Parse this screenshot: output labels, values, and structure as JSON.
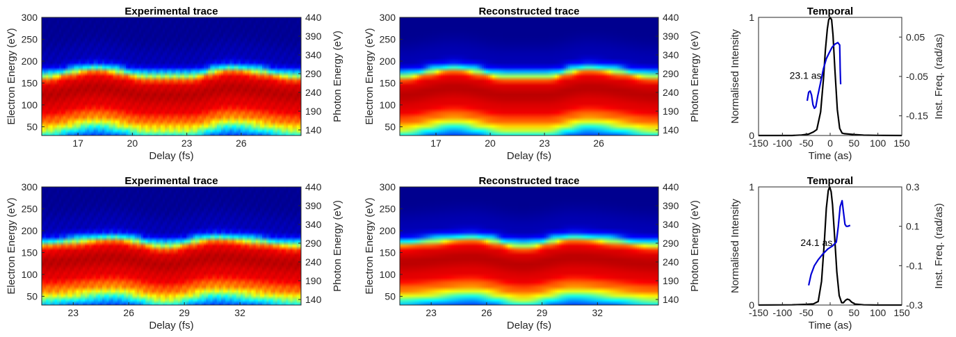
{
  "chart_data": [
    {
      "type": "heatmap",
      "title": "Experimental trace",
      "xlabel": "Delay (fs)",
      "ylabel": "Electron Energy (eV)",
      "y2label": "Photon Energy (eV)",
      "xlim": [
        15,
        29.3
      ],
      "ylim": [
        30,
        300
      ],
      "y2lim": [
        170,
        440
      ],
      "xticks": [
        17,
        20,
        23,
        26
      ],
      "yticks": [
        50,
        100,
        150,
        200,
        250,
        300
      ],
      "y2ticks": [
        140,
        190,
        240,
        290,
        340,
        390,
        440
      ],
      "colormap": "jet",
      "trace": {
        "center_x": [
          15,
          18,
          21,
          23,
          25.4,
          29.3
        ],
        "center_y": [
          123,
          140,
          123,
          123,
          140,
          123
        ]
      }
    },
    {
      "type": "heatmap",
      "title": "Reconstructed trace",
      "xlabel": "Delay (fs)",
      "ylabel": "Electron Energy (eV)",
      "y2label": "Photon Energy (eV)",
      "xlim": [
        15,
        29.3
      ],
      "ylim": [
        30,
        300
      ],
      "y2lim": [
        170,
        440
      ],
      "xticks": [
        17,
        20,
        23,
        26
      ],
      "yticks": [
        50,
        100,
        150,
        200,
        250,
        300
      ],
      "y2ticks": [
        140,
        190,
        240,
        290,
        340,
        390,
        440
      ],
      "colormap": "jet",
      "trace": {
        "center_x": [
          15,
          18,
          21,
          23,
          25.4,
          29.3
        ],
        "center_y": [
          123,
          140,
          123,
          123,
          140,
          123
        ]
      }
    },
    {
      "type": "line",
      "title": "Temporal",
      "xlabel": "Time (as)",
      "ylabel": "Normalised Intensity",
      "y2label": "Inst. Freq. (rad/as)",
      "xlim": [
        -150,
        150
      ],
      "ylim": [
        0,
        1
      ],
      "y2lim": [
        -0.2,
        0.1
      ],
      "xticks": [
        -150,
        -100,
        -50,
        0,
        50,
        100,
        150
      ],
      "yticks": [
        0,
        1
      ],
      "y2ticks": [
        -0.15,
        -0.05,
        0.05
      ],
      "annotation": {
        "text": "23.1 as",
        "x": -85,
        "y": 0.48
      },
      "series": [
        {
          "axis": "left",
          "color": "#000000",
          "x": [
            -150,
            -80,
            -60,
            -45,
            -35,
            -28,
            -20,
            -14,
            -10,
            -6,
            -3,
            0,
            3,
            6,
            10,
            15,
            20,
            25,
            30,
            40,
            50,
            70,
            100,
            150
          ],
          "y": [
            0,
            0,
            0.004,
            0.012,
            0.03,
            0.05,
            0.2,
            0.48,
            0.72,
            0.9,
            0.98,
            1.0,
            0.98,
            0.85,
            0.55,
            0.22,
            0.06,
            0.02,
            0.015,
            0.012,
            0.008,
            0.003,
            0.001,
            0
          ]
        },
        {
          "axis": "right",
          "color": "#0000d6",
          "x": [
            -48,
            -45,
            -42,
            -39,
            -36,
            -33,
            -30,
            -26,
            -20,
            -14,
            -8,
            -2,
            4,
            10,
            16,
            20,
            20.5,
            21,
            21.5,
            22
          ],
          "y": [
            -0.112,
            -0.09,
            -0.087,
            -0.097,
            -0.122,
            -0.131,
            -0.127,
            -0.1,
            -0.065,
            -0.03,
            -0.005,
            0.01,
            0.024,
            0.032,
            0.036,
            0.03,
            0.0,
            -0.03,
            -0.055,
            -0.07
          ]
        }
      ]
    },
    {
      "type": "heatmap",
      "title": "Experimental trace",
      "xlabel": "Delay (fs)",
      "ylabel": "Electron Energy (eV)",
      "y2label": "Photon Energy (eV)",
      "xlim": [
        21.3,
        35.3
      ],
      "ylim": [
        30,
        300
      ],
      "y2lim": [
        170,
        440
      ],
      "xticks": [
        23,
        26,
        29,
        32
      ],
      "yticks": [
        50,
        100,
        150,
        200,
        250,
        300
      ],
      "y2ticks": [
        140,
        190,
        240,
        290,
        340,
        390,
        440
      ],
      "colormap": "jet",
      "trace": {
        "center_x": [
          21.3,
          25.2,
          28,
          30.7,
          35.3
        ],
        "center_y": [
          128,
          140,
          123,
          140,
          125
        ]
      }
    },
    {
      "type": "heatmap",
      "title": "Reconstructed trace",
      "xlabel": "Delay (fs)",
      "ylabel": "Electron Energy (eV)",
      "y2label": "Photon Energy (eV)",
      "xlim": [
        21.3,
        35.3
      ],
      "ylim": [
        30,
        300
      ],
      "y2lim": [
        170,
        440
      ],
      "xticks": [
        23,
        26,
        29,
        32
      ],
      "yticks": [
        50,
        100,
        150,
        200,
        250,
        300
      ],
      "y2ticks": [
        140,
        190,
        240,
        290,
        340,
        390,
        440
      ],
      "colormap": "jet",
      "trace": {
        "center_x": [
          21.3,
          25.2,
          28,
          30.7,
          35.3
        ],
        "center_y": [
          128,
          140,
          123,
          140,
          125
        ]
      }
    },
    {
      "type": "line",
      "title": "Temporal",
      "xlabel": "Time (as)",
      "ylabel": "Normalised Intensity",
      "y2label": "Inst. Freq. (rad/as)",
      "xlim": [
        -150,
        150
      ],
      "ylim": [
        0,
        1
      ],
      "y2lim": [
        -0.3,
        0.3
      ],
      "xticks": [
        -150,
        -100,
        -50,
        0,
        50,
        100,
        150
      ],
      "yticks": [
        0,
        1
      ],
      "y2ticks": [
        -0.3,
        -0.1,
        0.1,
        0.3
      ],
      "annotation": {
        "text": "24.1 as",
        "x": -62,
        "y": 0.5
      },
      "series": [
        {
          "axis": "left",
          "color": "#000000",
          "x": [
            -150,
            -80,
            -50,
            -35,
            -25,
            -18,
            -12,
            -8,
            -4,
            -1,
            2,
            5,
            9,
            14,
            19,
            24,
            28,
            32,
            36,
            40,
            45,
            52,
            70,
            100,
            150
          ],
          "y": [
            0,
            0.002,
            0.006,
            0.01,
            0.03,
            0.2,
            0.55,
            0.82,
            0.97,
            1.0,
            0.96,
            0.85,
            0.6,
            0.28,
            0.08,
            0.02,
            0.02,
            0.04,
            0.05,
            0.045,
            0.025,
            0.008,
            0.002,
            0,
            0
          ]
        },
        {
          "axis": "right",
          "color": "#0000d6",
          "x": [
            -45,
            -40,
            -33,
            -25,
            -15,
            -5,
            5,
            13,
            17,
            21,
            25,
            28,
            31,
            34,
            37,
            42
          ],
          "y": [
            -0.2,
            -0.145,
            -0.1,
            -0.07,
            -0.04,
            -0.015,
            0.0,
            0.02,
            0.1,
            0.2,
            0.23,
            0.17,
            0.11,
            0.1,
            0.1,
            0.105
          ]
        }
      ]
    }
  ]
}
